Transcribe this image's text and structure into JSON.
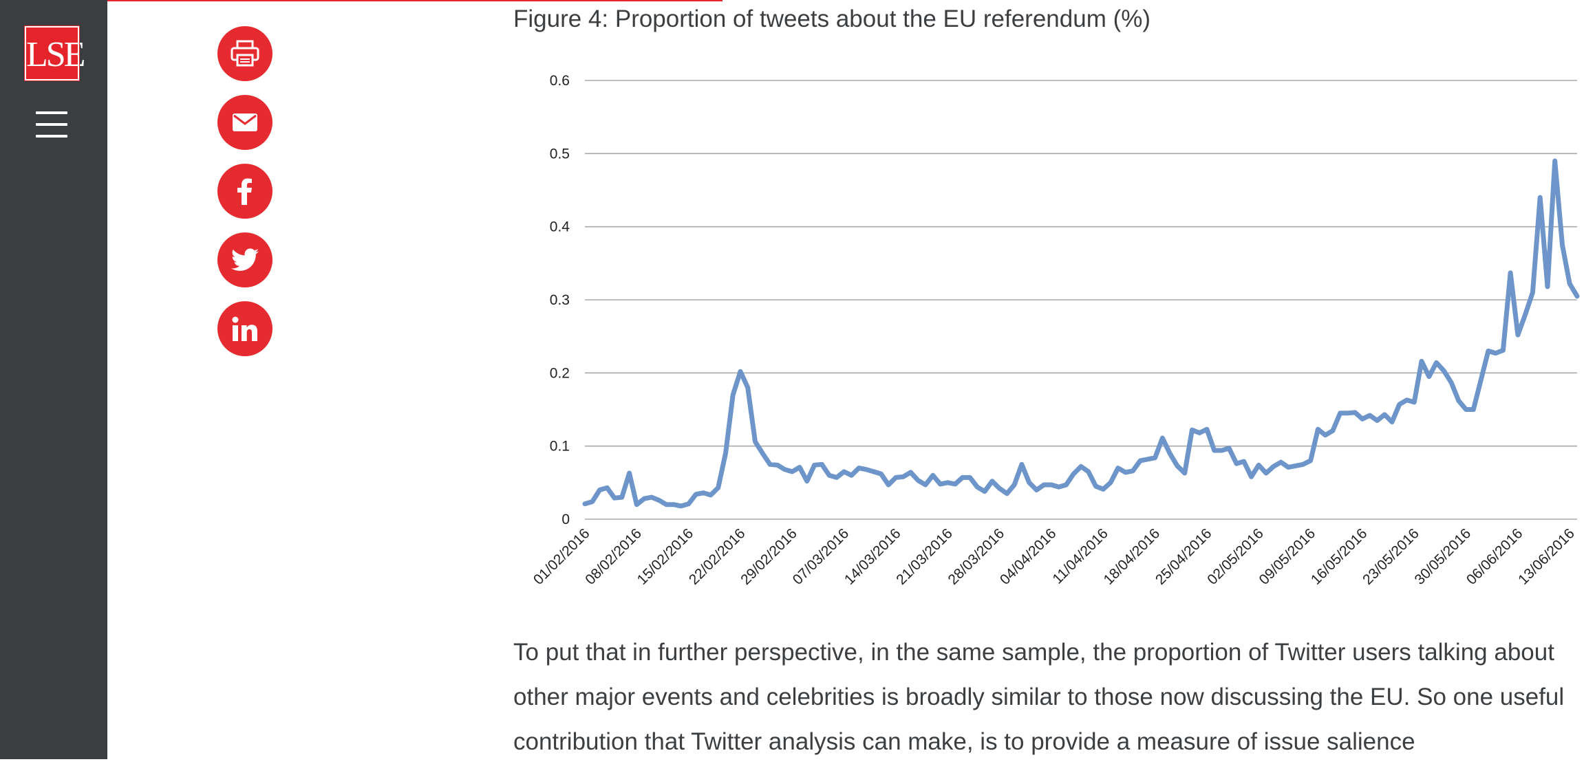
{
  "sidebar": {
    "logo_text": "LSE",
    "menu_icon": "hamburger-menu-icon"
  },
  "share_buttons": [
    {
      "name": "print",
      "icon": "printer-icon"
    },
    {
      "name": "email",
      "icon": "envelope-icon"
    },
    {
      "name": "facebook",
      "icon": "facebook-icon"
    },
    {
      "name": "twitter",
      "icon": "twitter-bird-icon"
    },
    {
      "name": "linkedin",
      "icon": "linkedin-icon"
    }
  ],
  "colors": {
    "accent": "#e5232b",
    "sidebar": "#3b3e40",
    "line": "#6d95c9"
  },
  "figure": {
    "title": "Figure 4: Proportion of tweets about the EU referendum (%)"
  },
  "chart_data": {
    "type": "line",
    "title": "Figure 4: Proportion of tweets about the EU referendum (%)",
    "xlabel": "",
    "ylabel": "",
    "ylim": [
      0,
      0.6
    ],
    "yticks": [
      "0",
      "0.1",
      "0.2",
      "0.3",
      "0.4",
      "0.5",
      "0.6"
    ],
    "grid": true,
    "x_tick_labels": [
      "01/02/2016",
      "08/02/2016",
      "15/02/2016",
      "22/02/2016",
      "29/02/2016",
      "07/03/2016",
      "14/03/2016",
      "21/03/2016",
      "28/03/2016",
      "04/04/2016",
      "11/04/2016",
      "18/04/2016",
      "25/04/2016",
      "02/05/2016",
      "09/05/2016",
      "16/05/2016",
      "23/05/2016",
      "30/05/2016",
      "06/06/2016",
      "13/06/2016"
    ],
    "x_start": "01/02/2016",
    "x_end": "14/06/2016",
    "series": [
      {
        "values": [
          0.021,
          0.024,
          0.04,
          0.043,
          0.029,
          0.03,
          0.063,
          0.02,
          0.028,
          0.03,
          0.026,
          0.02,
          0.02,
          0.018,
          0.021,
          0.034,
          0.036,
          0.033,
          0.043,
          0.09,
          0.17,
          0.202,
          0.18,
          0.106,
          0.09,
          0.075,
          0.074,
          0.068,
          0.065,
          0.071,
          0.052,
          0.074,
          0.075,
          0.06,
          0.057,
          0.065,
          0.06,
          0.07,
          0.068,
          0.065,
          0.062,
          0.047,
          0.057,
          0.058,
          0.064,
          0.053,
          0.047,
          0.06,
          0.048,
          0.05,
          0.048,
          0.057,
          0.057,
          0.044,
          0.038,
          0.052,
          0.042,
          0.035,
          0.047,
          0.075,
          0.05,
          0.04,
          0.047,
          0.047,
          0.044,
          0.047,
          0.062,
          0.072,
          0.065,
          0.045,
          0.041,
          0.05,
          0.07,
          0.064,
          0.066,
          0.08,
          0.082,
          0.084,
          0.111,
          0.09,
          0.073,
          0.063,
          0.122,
          0.118,
          0.123,
          0.094,
          0.094,
          0.097,
          0.076,
          0.079,
          0.058,
          0.074,
          0.063,
          0.072,
          0.078,
          0.071,
          0.073,
          0.075,
          0.08,
          0.123,
          0.115,
          0.121,
          0.145,
          0.145,
          0.146,
          0.137,
          0.142,
          0.135,
          0.143,
          0.133,
          0.157,
          0.163,
          0.16,
          0.216,
          0.195,
          0.214,
          0.203,
          0.187,
          0.162,
          0.15,
          0.15,
          0.19,
          0.23,
          0.227,
          0.231,
          0.337,
          0.252,
          0.28,
          0.31,
          0.44,
          0.318,
          0.49,
          0.375,
          0.322,
          0.305
        ]
      }
    ]
  },
  "body": {
    "paragraph": "To put that in further perspective, in the same sample, the proportion of Twitter users talking about other major events and celebrities is broadly similar to those now discussing the EU. So one useful contribution that Twitter analysis can make, is to provide a measure of issue salience"
  }
}
